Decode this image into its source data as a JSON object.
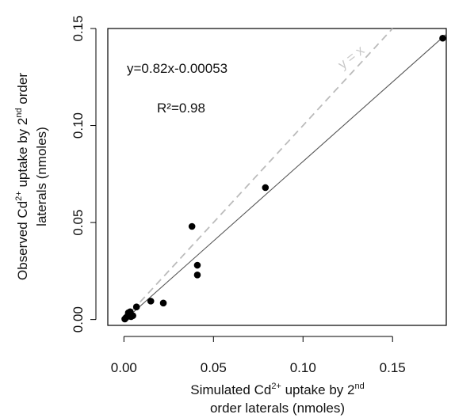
{
  "chart_data": {
    "type": "scatter",
    "title": "",
    "xlabel_line1": {
      "a": "Simulated Cd",
      "sup1": "2+",
      "b": " uptake by 2",
      "sup2": "nd"
    },
    "xlabel_line2": "order laterals (nmoles)",
    "ylabel_line1": {
      "a": "Observed Cd",
      "sup1": "2+",
      "b": " uptake by 2",
      "sup2": "nd",
      "c": " order"
    },
    "ylabel_line2": "laterals (nmoles)",
    "xlim": [
      -0.009,
      0.18
    ],
    "ylim": [
      -0.003,
      0.15
    ],
    "xticks": [
      0.0,
      0.05,
      0.1,
      0.15
    ],
    "xtick_labels": [
      "0.00",
      "0.05",
      "0.10",
      "0.15"
    ],
    "yticks": [
      0.0,
      0.05,
      0.1,
      0.15
    ],
    "ytick_labels": [
      "0.00",
      "0.05",
      "0.10",
      "0.15"
    ],
    "grid": false,
    "points": [
      {
        "x": 0.0005,
        "y": 0.0003
      },
      {
        "x": 0.0012,
        "y": 0.001
      },
      {
        "x": 0.002,
        "y": 0.0018
      },
      {
        "x": 0.0025,
        "y": 0.0035
      },
      {
        "x": 0.0035,
        "y": 0.004
      },
      {
        "x": 0.004,
        "y": 0.0015
      },
      {
        "x": 0.005,
        "y": 0.002
      },
      {
        "x": 0.007,
        "y": 0.0065
      },
      {
        "x": 0.015,
        "y": 0.0095
      },
      {
        "x": 0.022,
        "y": 0.0085
      },
      {
        "x": 0.038,
        "y": 0.048
      },
      {
        "x": 0.041,
        "y": 0.028
      },
      {
        "x": 0.041,
        "y": 0.023
      },
      {
        "x": 0.079,
        "y": 0.068
      },
      {
        "x": 0.178,
        "y": 0.145
      }
    ],
    "fit_line": {
      "slope": 0.82,
      "intercept": -0.00053,
      "x_range": [
        0.0,
        0.18
      ],
      "color": "#555555"
    },
    "identity_line": {
      "label": "y = x",
      "x_range": [
        0.0,
        0.15
      ],
      "color": "#bbbbbb",
      "dashed": true
    },
    "annotations": {
      "equation": "y=0.82x-0.00053",
      "r2_prefix": "R²=",
      "r2_value": "0.98"
    },
    "colors": {
      "points": "#000000",
      "frame": "#000000"
    }
  }
}
